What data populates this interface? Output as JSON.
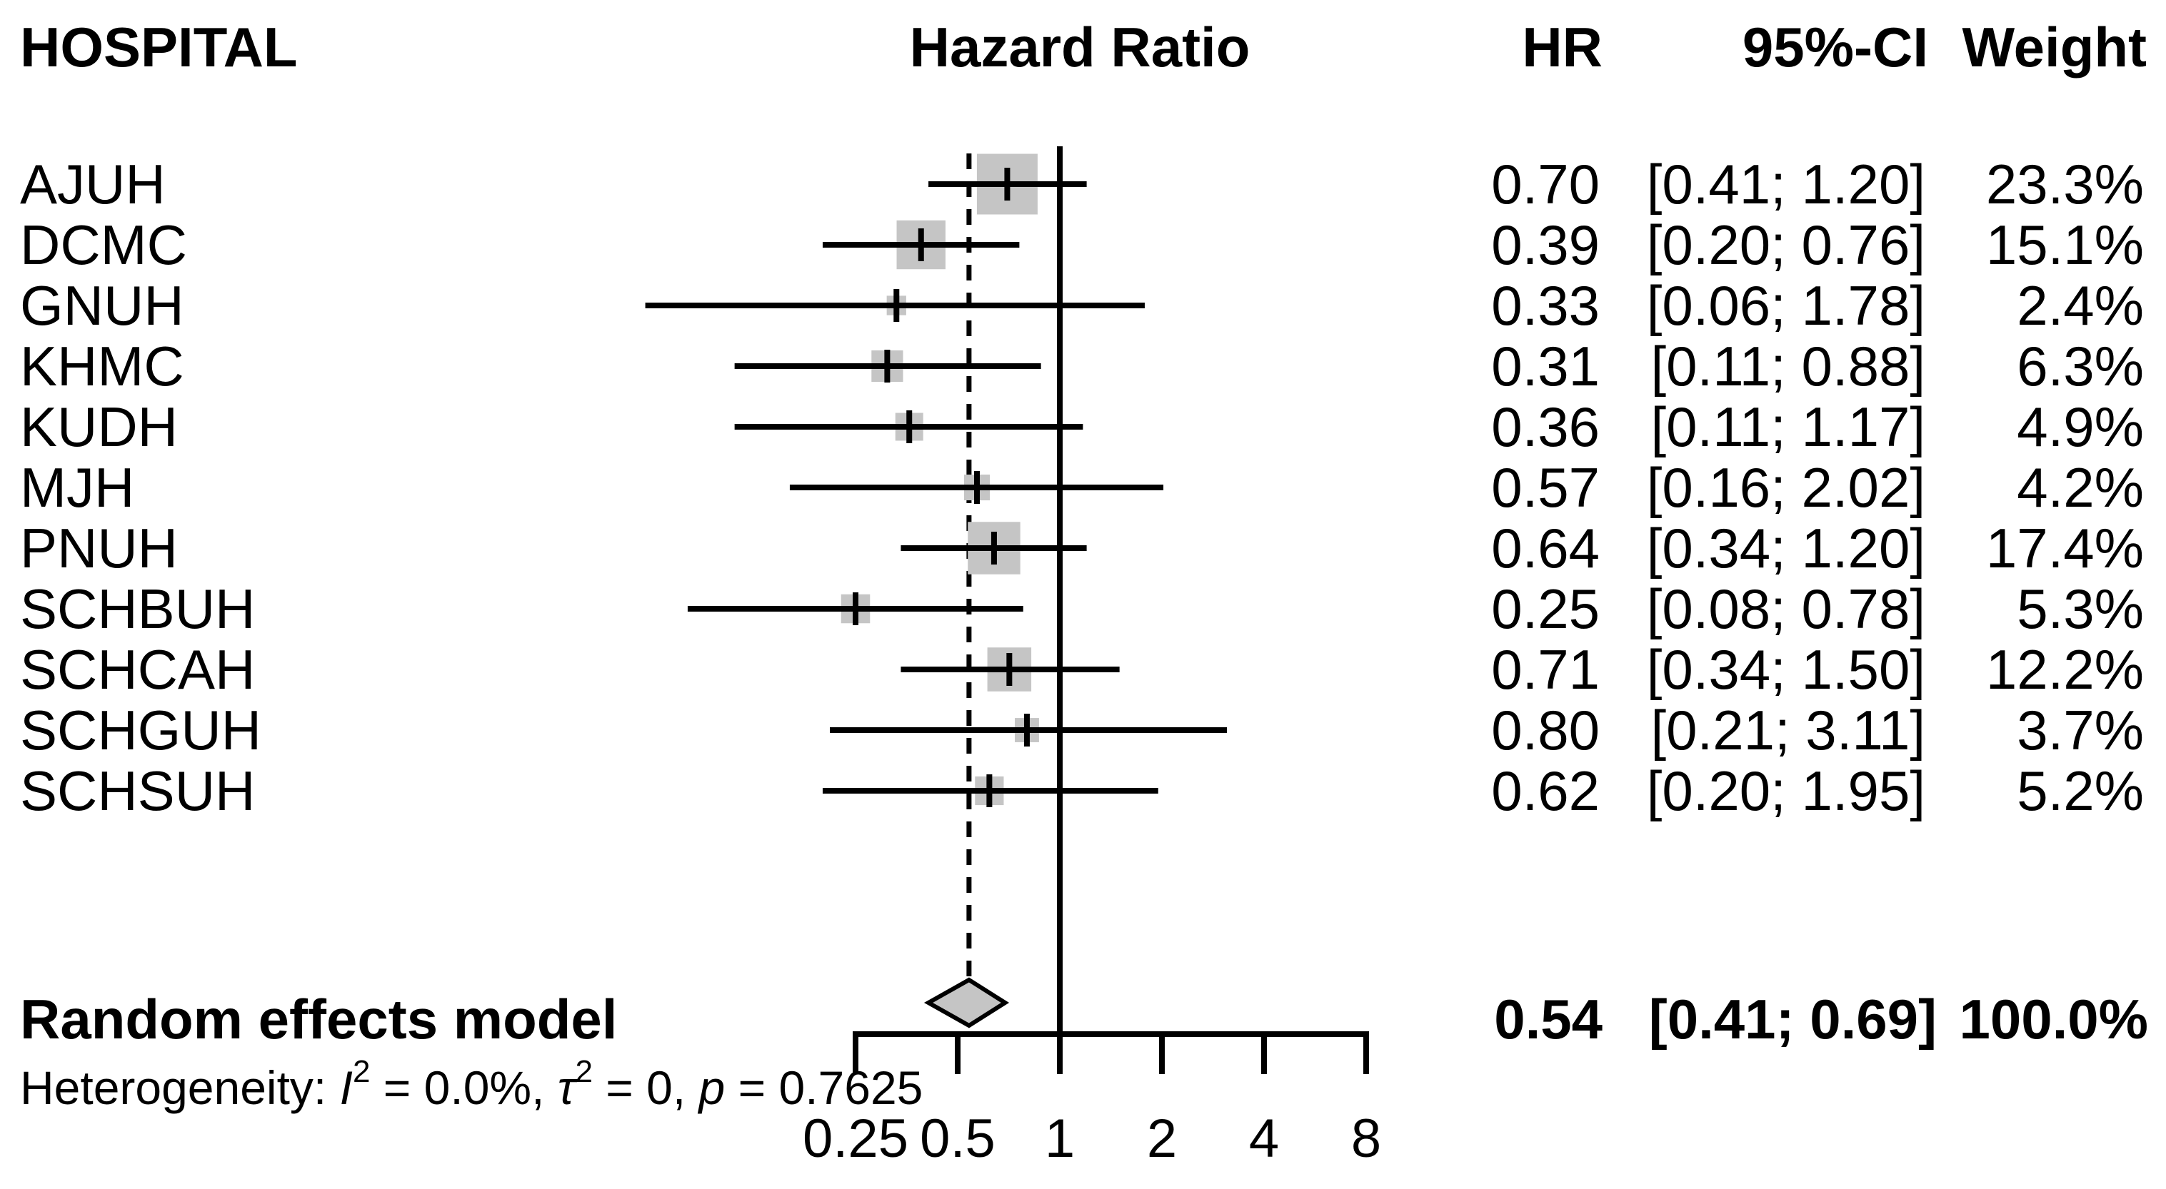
{
  "header": {
    "study_col": "HOSPITAL",
    "plot_col": "Hazard Ratio",
    "hr_col": "HR",
    "ci_col": "95%-CI",
    "weight_col": "Weight"
  },
  "chart_data": {
    "type": "forest",
    "title": "Hazard Ratio",
    "x_axis": {
      "scale": "log2",
      "range": [
        0.25,
        8
      ],
      "ticks": [
        0.25,
        0.5,
        1,
        2,
        4,
        8
      ],
      "tick_labels": [
        "0.25",
        "0.5",
        "1",
        "2",
        "4",
        "8"
      ],
      "reference_value": 1,
      "pooled_dashed_value": 0.54
    },
    "studies": [
      {
        "label": "AJUH",
        "hr": 0.7,
        "ci_low": 0.41,
        "ci_high": 1.2,
        "weight_pct": 23.3,
        "hr_text": "0.70",
        "ci_text": "[0.41; 1.20]",
        "weight_text": "23.3%"
      },
      {
        "label": "DCMC",
        "hr": 0.39,
        "ci_low": 0.2,
        "ci_high": 0.76,
        "weight_pct": 15.1,
        "hr_text": "0.39",
        "ci_text": "[0.20; 0.76]",
        "weight_text": "15.1%"
      },
      {
        "label": "GNUH",
        "hr": 0.33,
        "ci_low": 0.06,
        "ci_high": 1.78,
        "weight_pct": 2.4,
        "hr_text": "0.33",
        "ci_text": "[0.06; 1.78]",
        "weight_text": "2.4%"
      },
      {
        "label": "KHMC",
        "hr": 0.31,
        "ci_low": 0.11,
        "ci_high": 0.88,
        "weight_pct": 6.3,
        "hr_text": "0.31",
        "ci_text": "[0.11; 0.88]",
        "weight_text": "6.3%"
      },
      {
        "label": "KUDH",
        "hr": 0.36,
        "ci_low": 0.11,
        "ci_high": 1.17,
        "weight_pct": 4.9,
        "hr_text": "0.36",
        "ci_text": "[0.11; 1.17]",
        "weight_text": "4.9%"
      },
      {
        "label": "MJH",
        "hr": 0.57,
        "ci_low": 0.16,
        "ci_high": 2.02,
        "weight_pct": 4.2,
        "hr_text": "0.57",
        "ci_text": "[0.16; 2.02]",
        "weight_text": "4.2%"
      },
      {
        "label": "PNUH",
        "hr": 0.64,
        "ci_low": 0.34,
        "ci_high": 1.2,
        "weight_pct": 17.4,
        "hr_text": "0.64",
        "ci_text": "[0.34; 1.20]",
        "weight_text": "17.4%"
      },
      {
        "label": "SCHBUH",
        "hr": 0.25,
        "ci_low": 0.08,
        "ci_high": 0.78,
        "weight_pct": 5.3,
        "hr_text": "0.25",
        "ci_text": "[0.08; 0.78]",
        "weight_text": "5.3%"
      },
      {
        "label": "SCHCAH",
        "hr": 0.71,
        "ci_low": 0.34,
        "ci_high": 1.5,
        "weight_pct": 12.2,
        "hr_text": "0.71",
        "ci_text": "[0.34; 1.50]",
        "weight_text": "12.2%"
      },
      {
        "label": "SCHGUH",
        "hr": 0.8,
        "ci_low": 0.21,
        "ci_high": 3.11,
        "weight_pct": 3.7,
        "hr_text": "0.80",
        "ci_text": "[0.21; 3.11]",
        "weight_text": "3.7%"
      },
      {
        "label": "SCHSUH",
        "hr": 0.62,
        "ci_low": 0.2,
        "ci_high": 1.95,
        "weight_pct": 5.2,
        "hr_text": "0.62",
        "ci_text": "[0.20; 1.95]",
        "weight_text": "5.2%"
      }
    ],
    "summary": {
      "label": "Random effects model",
      "hr": 0.54,
      "ci_low": 0.41,
      "ci_high": 0.69,
      "hr_text": "0.54",
      "ci_text": "[0.41; 0.69]",
      "weight_text": "100.0%"
    },
    "heterogeneity": {
      "prefix": "Heterogeneity: ",
      "i_sym": "I",
      "i_sup": "2",
      "i_eq": " = 0.0%, ",
      "tau_sym": "τ",
      "tau_sup": "2",
      "tau_eq": " = 0, ",
      "p_sym": "p",
      "p_eq": " = 0.7625"
    },
    "legend_position": "none",
    "grid": false
  },
  "colors": {
    "effect_square": "#c5c5c5",
    "diamond_fill": "#c5c5c5",
    "line": "#000000",
    "text": "#000000",
    "background": "#ffffff"
  }
}
